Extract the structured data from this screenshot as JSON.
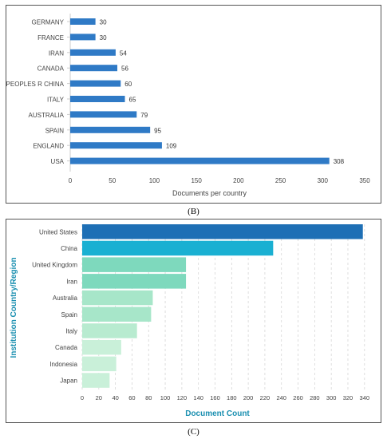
{
  "chart_data": [
    {
      "type": "bar",
      "orientation": "horizontal",
      "caption": "(B)",
      "categories": [
        "GERMANY",
        "FRANCE",
        "IRAN",
        "CANADA",
        "PEOPLES R CHINA",
        "ITALY",
        "AUSTRALIA",
        "SPAIN",
        "ENGLAND",
        "USA"
      ],
      "values": [
        30,
        30,
        54,
        56,
        60,
        65,
        79,
        95,
        109,
        308
      ],
      "xlabel": "Documents per country",
      "ylabel": "",
      "xlim": [
        0,
        350
      ],
      "xticks": [
        0,
        50,
        100,
        150,
        200,
        250,
        300,
        350
      ],
      "bar_color": "#2f7ac6",
      "grid": false,
      "data_labels": true
    },
    {
      "type": "bar",
      "orientation": "horizontal",
      "caption": "(C)",
      "categories": [
        "United States",
        "China",
        "United Kingdom",
        "Iran",
        "Australia",
        "Spain",
        "Italy",
        "Canada",
        "Indonesia",
        "Japan"
      ],
      "values": [
        338,
        230,
        125,
        125,
        85,
        83,
        66,
        47,
        41,
        33
      ],
      "xlabel": "Document Count",
      "ylabel": "Institution Country/Region",
      "xlim": [
        0,
        345
      ],
      "xticks": [
        0,
        20,
        40,
        60,
        80,
        100,
        120,
        140,
        160,
        180,
        200,
        220,
        240,
        260,
        280,
        300,
        320,
        340
      ],
      "bar_colors": [
        "#1e6fb5",
        "#1ab0d2",
        "#7ed9bd",
        "#7ed9bd",
        "#a7e6c9",
        "#a7e6c9",
        "#b8ebd0",
        "#c9f0d9",
        "#c9f0d9",
        "#c9f0d9"
      ],
      "label_color": "#1a8fb0",
      "grid": true,
      "data_labels": false
    }
  ]
}
